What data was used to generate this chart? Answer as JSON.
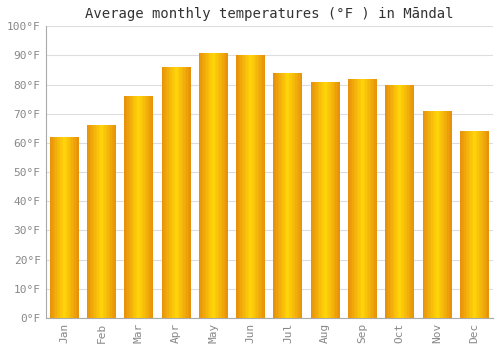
{
  "title": "Average monthly temperatures (°F ) in Māndal",
  "months": [
    "Jan",
    "Feb",
    "Mar",
    "Apr",
    "May",
    "Jun",
    "Jul",
    "Aug",
    "Sep",
    "Oct",
    "Nov",
    "Dec"
  ],
  "values": [
    62,
    66,
    76,
    86,
    91,
    90,
    84,
    81,
    82,
    80,
    71,
    64
  ],
  "bar_color_main": "#FFAA00",
  "bar_color_light": "#FFD060",
  "ylim": [
    0,
    100
  ],
  "yticks": [
    0,
    10,
    20,
    30,
    40,
    50,
    60,
    70,
    80,
    90,
    100
  ],
  "ytick_labels": [
    "0°F",
    "10°F",
    "20°F",
    "30°F",
    "40°F",
    "50°F",
    "60°F",
    "70°F",
    "80°F",
    "90°F",
    "100°F"
  ],
  "background_color": "#ffffff",
  "grid_color": "#dddddd",
  "title_fontsize": 10,
  "tick_fontsize": 8,
  "tick_color": "#888888",
  "bar_width": 0.78,
  "spine_color": "#aaaaaa"
}
